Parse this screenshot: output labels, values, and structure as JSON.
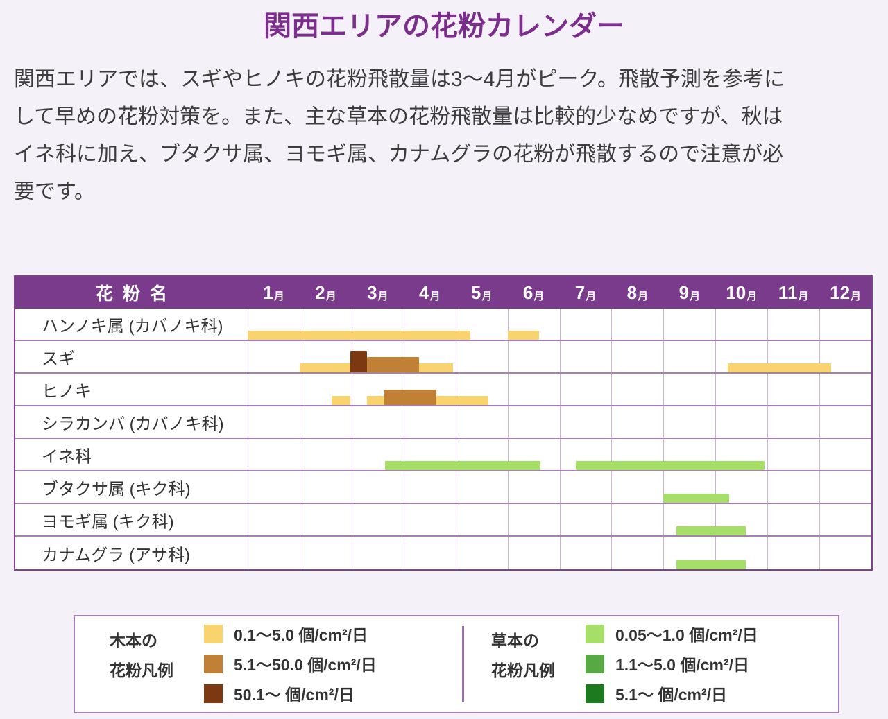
{
  "page": {
    "title": "関西エリアの花粉カレンダー",
    "background": "#F4F1F8",
    "title_color": "#7B2E8C"
  },
  "intro": {
    "lines": [
      "関西エリアでは、スギやヒノキの花粉飛散量は3〜4月がピーク。飛散予測を参考に",
      "して早めの花粉対策を。また、主な草本の花粉飛散量は比較的少なめですが、秋は",
      "イネ科に加え、ブタクサ属、ヨモギ属、カナムグラの花粉が飛散するので注意が必",
      "要です。"
    ]
  },
  "chart_data": {
    "type": "gantt",
    "title": "関西エリアの花粉カレンダー",
    "header_label": "花粉名",
    "months": [
      "1",
      "2",
      "3",
      "4",
      "5",
      "6",
      "7",
      "8",
      "9",
      "10",
      "11",
      "12"
    ],
    "month_unit": "月",
    "x_range_months": [
      0,
      12
    ],
    "grid": true,
    "levels": {
      "tree1": {
        "group": "木本",
        "label": "0.1〜5.0 個/cm²/日",
        "color": "#F8D36E",
        "intensity": 1
      },
      "tree2": {
        "group": "木本",
        "label": "5.1〜50.0 個/cm²/日",
        "color": "#C08136",
        "intensity": 2
      },
      "tree3": {
        "group": "木本",
        "label": "50.1〜 個/cm²/日",
        "color": "#7C3810",
        "intensity": 3
      },
      "grass1": {
        "group": "草本",
        "label": "0.05〜1.0 個/cm²/日",
        "color": "#A6DF68",
        "intensity": 1
      },
      "grass2": {
        "group": "草本",
        "label": "1.1〜5.0 個/cm²/日",
        "color": "#57A944",
        "intensity": 2
      },
      "grass3": {
        "group": "草本",
        "label": "5.1〜 個/cm²/日",
        "color": "#1E7A1F",
        "intensity": 3
      }
    },
    "rows": [
      {
        "label": "ハンノキ属 (カバノキ科)",
        "bars": [
          {
            "start": 0.0,
            "end": 4.28,
            "level": "tree1"
          },
          {
            "start": 5.0,
            "end": 5.61,
            "level": "tree1"
          }
        ]
      },
      {
        "label": "スギ",
        "bars": [
          {
            "start": 1.0,
            "end": 3.95,
            "level": "tree1"
          },
          {
            "start": 2.3,
            "end": 3.3,
            "level": "tree2"
          },
          {
            "start": 1.97,
            "end": 2.3,
            "level": "tree3"
          },
          {
            "start": 9.24,
            "end": 11.23,
            "level": "tree1"
          }
        ]
      },
      {
        "label": "ヒノキ",
        "bars": [
          {
            "start": 1.61,
            "end": 1.98,
            "level": "tree1"
          },
          {
            "start": 2.3,
            "end": 4.63,
            "level": "tree1"
          },
          {
            "start": 2.63,
            "end": 3.63,
            "level": "tree2"
          }
        ]
      },
      {
        "label": "シラカンバ (カバノキ科)",
        "bars": []
      },
      {
        "label": "イネ科",
        "bars": [
          {
            "start": 2.64,
            "end": 5.63,
            "level": "grass1"
          },
          {
            "start": 6.31,
            "end": 9.95,
            "level": "grass1"
          }
        ]
      },
      {
        "label": "ブタクサ属 (キク科)",
        "bars": [
          {
            "start": 8.0,
            "end": 9.26,
            "level": "grass1"
          }
        ]
      },
      {
        "label": "ヨモギ属 (キク科)",
        "bars": [
          {
            "start": 8.25,
            "end": 9.58,
            "level": "grass1"
          }
        ]
      },
      {
        "label": "カナムグラ (アサ科)",
        "bars": [
          {
            "start": 8.25,
            "end": 9.58,
            "level": "grass1"
          }
        ]
      }
    ]
  },
  "legend": {
    "tree": {
      "title_lines": [
        "木本の",
        "花粉凡例"
      ],
      "items": [
        "tree1",
        "tree2",
        "tree3"
      ]
    },
    "grass": {
      "title_lines": [
        "草本の",
        "花粉凡例"
      ],
      "items": [
        "grass1",
        "grass2",
        "grass3"
      ]
    }
  },
  "colors": {
    "header_bg": "#7B3B8C",
    "table_border": "#7E4190",
    "row_border": "#A77FB5",
    "month_gridline": "#CFB0DC",
    "legend_border": "#A87FBC",
    "legend_divider": "#9C6FAD",
    "text": "#3C3C3C"
  }
}
